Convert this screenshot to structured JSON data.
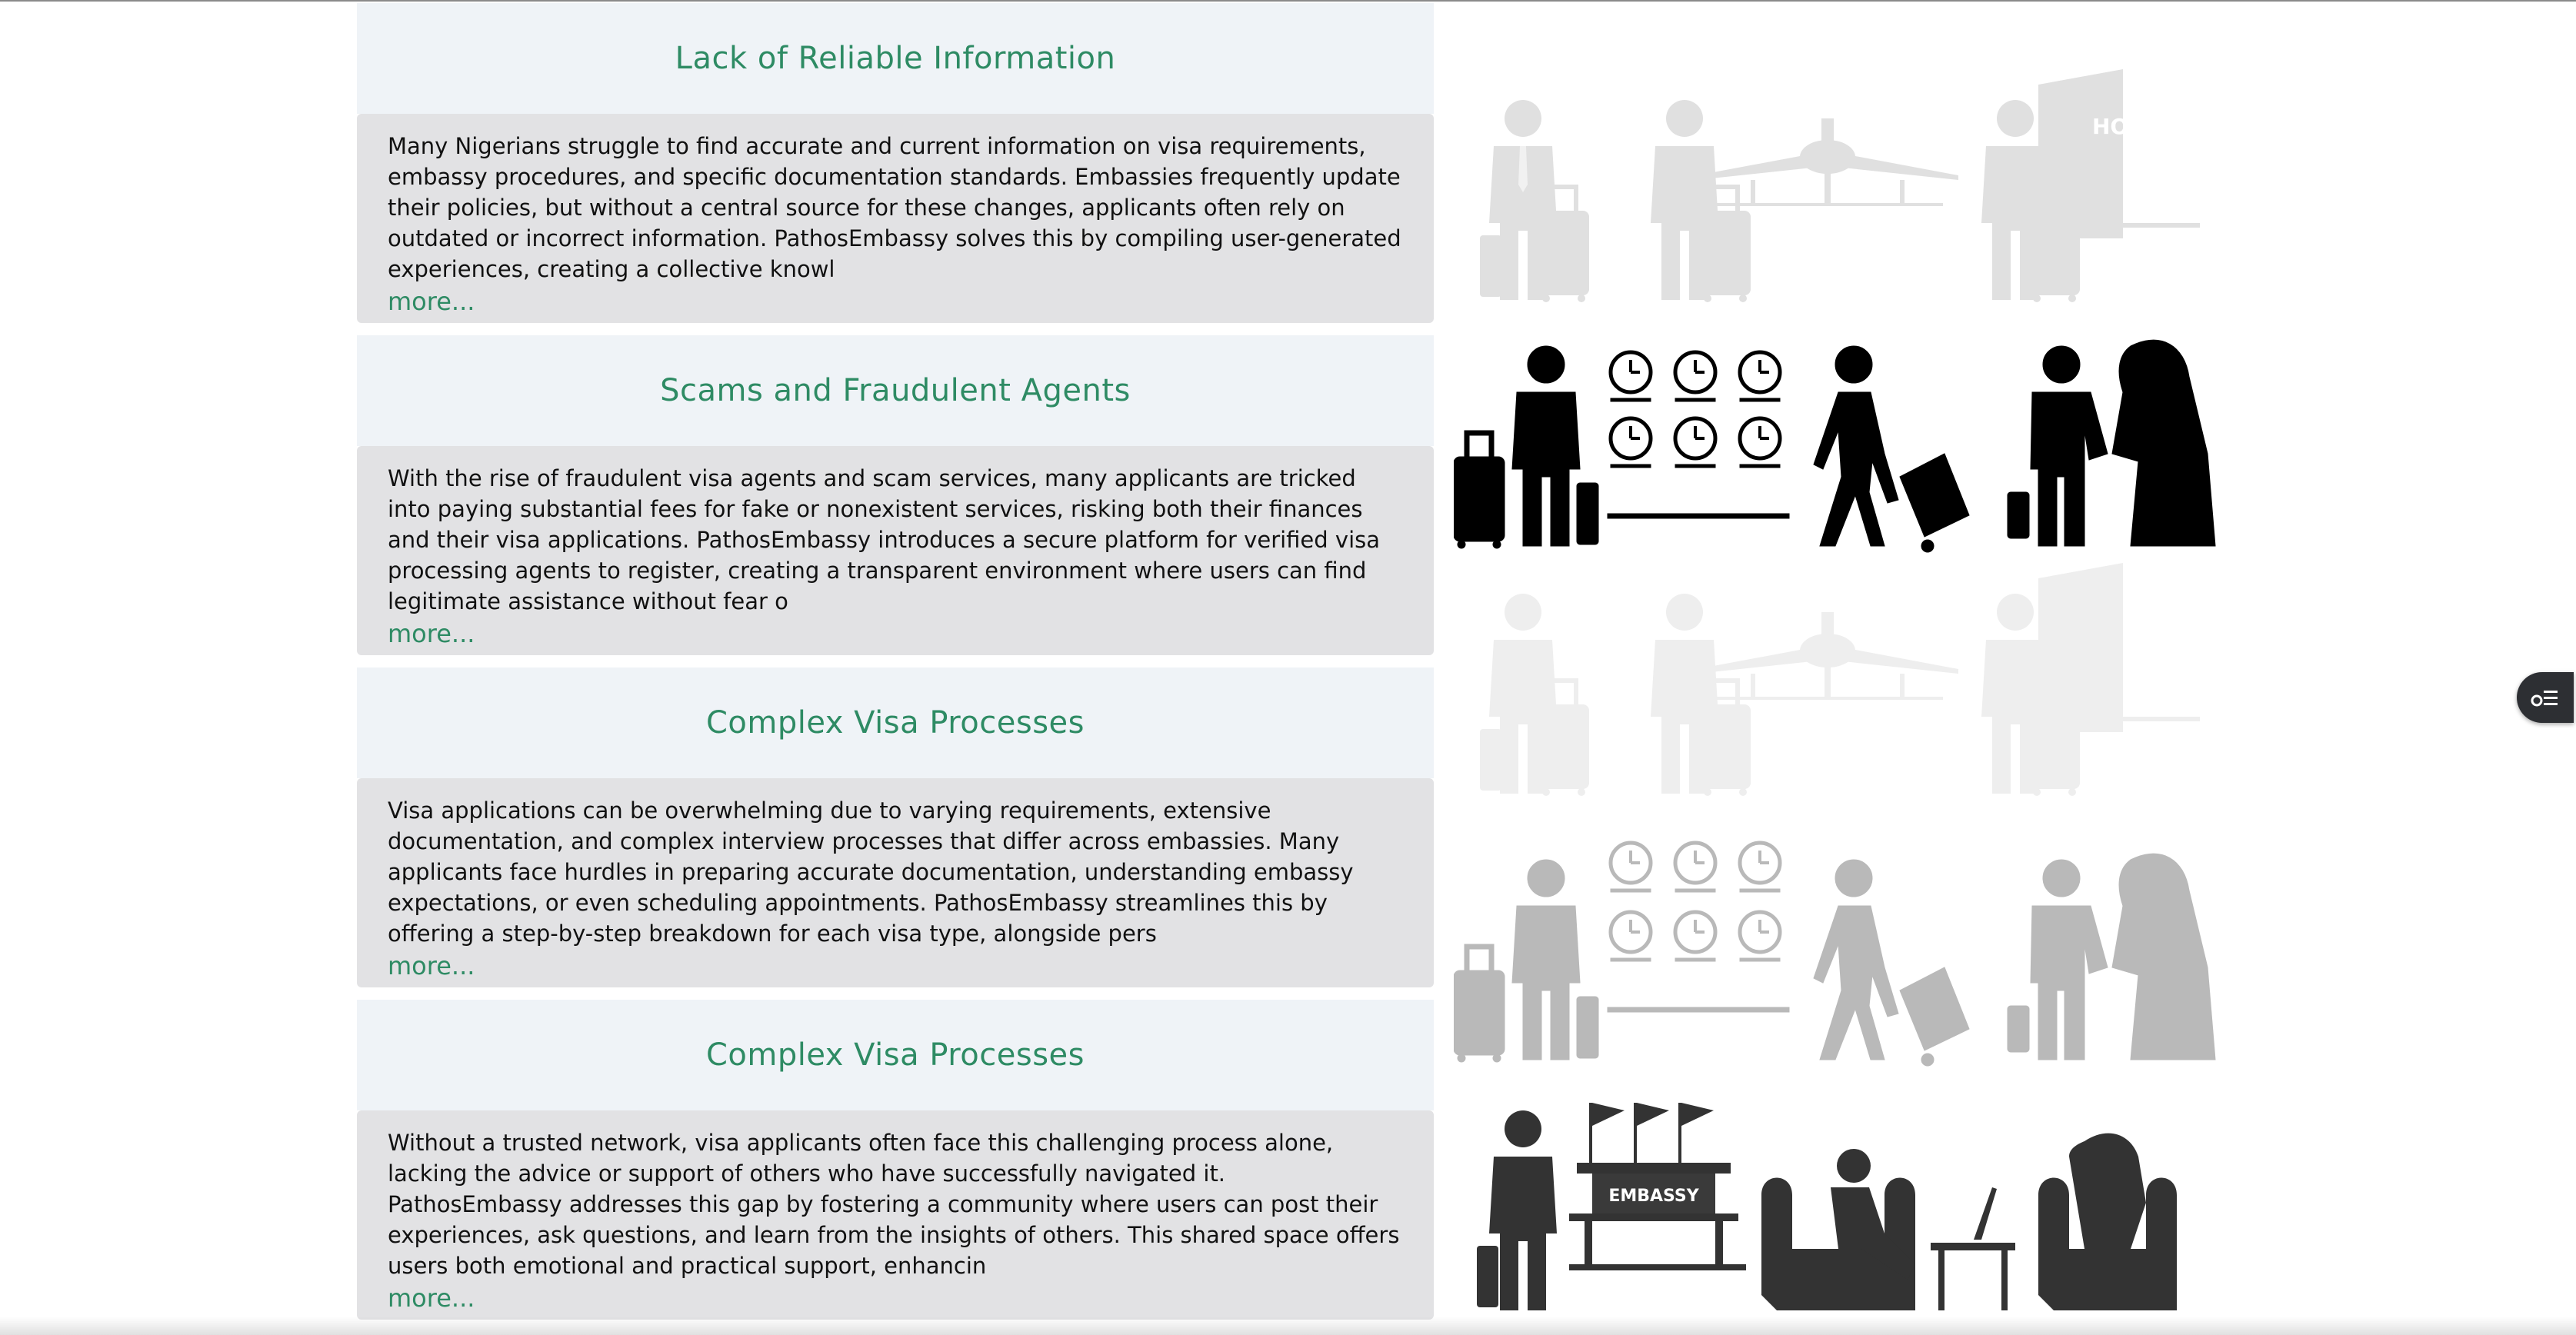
{
  "sections": [
    {
      "title": "Lack of Reliable Information",
      "description": "Many Nigerians struggle to find accurate and current information on visa requirements, embassy procedures, and specific documentation standards. Embassies frequently update their policies, but without a central source for these changes, applicants often rely on outdated or incorrect information. PathosEmbassy solves this by compiling user-generated experiences, creating a collective knowl",
      "more": "more..."
    },
    {
      "title": "Scams and Fraudulent Agents",
      "description": "With the rise of fraudulent visa agents and scam services, many applicants are tricked into paying substantial fees for fake or nonexistent services, risking both their finances and their visa applications. PathosEmbassy introduces a secure platform for verified visa processing agents to register, creating a transparent environment where users can find legitimate assistance without fear o",
      "more": "more..."
    },
    {
      "title": "Complex Visa Processes",
      "description": "Visa applications can be overwhelming due to varying requirements, extensive documentation, and complex interview processes that differ across embassies. Many applicants face hurdles in preparing accurate documentation, understanding embassy expectations, or even scheduling appointments. PathosEmbassy streamlines this by offering a step-by-step breakdown for each visa type, alongside pers",
      "more": "more..."
    },
    {
      "title": "Complex Visa Processes",
      "description": "Without a trusted network, visa applicants often face this challenging process alone, lacking the advice or support of others who have successfully navigated it. PathosEmbassy addresses this gap by fostering a community where users can post their experiences, ask questions, and learn from the insights of others. This shared space offers users both emotional and practical support, enhancin",
      "more": "more..."
    }
  ],
  "illustration": {
    "hotel_sign": "HOTEL",
    "embassy_sign": "EMBASSY",
    "icon": "travel-pictogram-illustration"
  },
  "fab_icon": "menu-toggle-icon"
}
